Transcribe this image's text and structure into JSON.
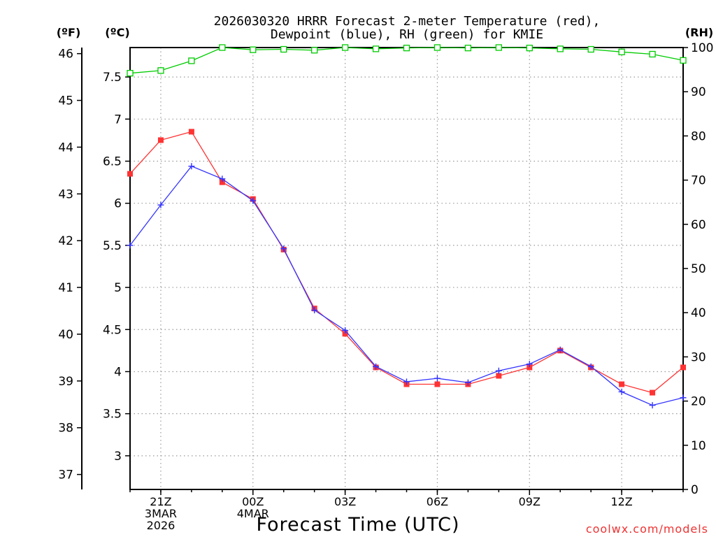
{
  "chart_data": {
    "type": "line",
    "title_line1": "2026030320 HRRR Forecast 2-meter Temperature (red),",
    "title_line2": "Dewpoint (blue), RH (green) for KMIE",
    "xlabel": "Forecast Time (UTC)",
    "watermark": "coolwx.com/models",
    "unit_f": "(ºF)",
    "unit_c": "(ºC)",
    "unit_rh": "(RH)",
    "x_hours": [
      20,
      21,
      22,
      23,
      0,
      1,
      2,
      3,
      4,
      5,
      6,
      7,
      8,
      9,
      10,
      11,
      12,
      13,
      14
    ],
    "x_range": [
      20,
      38
    ],
    "c_range": [
      2.6,
      7.85
    ],
    "rh_range": [
      0,
      100
    ],
    "f_range": [
      36.68,
      46.13
    ],
    "x_ticks": [
      {
        "x": 21,
        "lines": [
          "21Z",
          "3MAR",
          "2026"
        ]
      },
      {
        "x": 24,
        "lines": [
          "00Z",
          "4MAR"
        ]
      },
      {
        "x": 27,
        "lines": [
          "03Z"
        ]
      },
      {
        "x": 30,
        "lines": [
          "06Z"
        ]
      },
      {
        "x": 33,
        "lines": [
          "09Z"
        ]
      },
      {
        "x": 36,
        "lines": [
          "12Z"
        ]
      }
    ],
    "c_ticks": [
      {
        "v": 3,
        "label": "3"
      },
      {
        "v": 3.5,
        "label": "3.5"
      },
      {
        "v": 4,
        "label": "4"
      },
      {
        "v": 4.5,
        "label": "4.5"
      },
      {
        "v": 5,
        "label": "5"
      },
      {
        "v": 5.5,
        "label": "5.5"
      },
      {
        "v": 6,
        "label": "6"
      },
      {
        "v": 6.5,
        "label": "6.5"
      },
      {
        "v": 7,
        "label": "7"
      },
      {
        "v": 7.5,
        "label": "7.5"
      }
    ],
    "f_ticks": [
      {
        "v": 37,
        "label": "37"
      },
      {
        "v": 38,
        "label": "38"
      },
      {
        "v": 39,
        "label": "39"
      },
      {
        "v": 40,
        "label": "40"
      },
      {
        "v": 41,
        "label": "41"
      },
      {
        "v": 42,
        "label": "42"
      },
      {
        "v": 43,
        "label": "43"
      },
      {
        "v": 44,
        "label": "44"
      },
      {
        "v": 45,
        "label": "45"
      },
      {
        "v": 46,
        "label": "46"
      }
    ],
    "rh_ticks": [
      {
        "v": 0,
        "label": "0"
      },
      {
        "v": 10,
        "label": "10"
      },
      {
        "v": 20,
        "label": "20"
      },
      {
        "v": 30,
        "label": "30"
      },
      {
        "v": 40,
        "label": "40"
      },
      {
        "v": 50,
        "label": "50"
      },
      {
        "v": 60,
        "label": "60"
      },
      {
        "v": 70,
        "label": "70"
      },
      {
        "v": 80,
        "label": "80"
      },
      {
        "v": 90,
        "label": "90"
      },
      {
        "v": 100,
        "label": "100"
      }
    ],
    "series": [
      {
        "name": "Temperature",
        "color": "#ff3333",
        "marker": "filled-square",
        "axis": "c",
        "values": [
          6.35,
          6.75,
          6.85,
          6.25,
          6.05,
          5.45,
          4.75,
          4.45,
          4.05,
          3.85,
          3.85,
          3.85,
          3.95,
          4.05,
          4.25,
          4.05,
          3.85,
          3.75,
          4.05
        ]
      },
      {
        "name": "Dewpoint",
        "color": "#3333ff",
        "marker": "plus",
        "axis": "c",
        "values": [
          5.5,
          5.98,
          6.44,
          6.29,
          6.03,
          5.46,
          4.73,
          4.49,
          4.06,
          3.88,
          3.92,
          3.87,
          4.01,
          4.09,
          4.26,
          4.06,
          3.76,
          3.6,
          3.69
        ]
      },
      {
        "name": "RH",
        "color": "#00cc00",
        "marker": "open-square",
        "axis": "rh",
        "values": [
          94.2,
          94.8,
          97.0,
          100.0,
          99.5,
          99.6,
          99.4,
          100.0,
          99.7,
          99.9,
          100.0,
          99.9,
          100.0,
          99.9,
          99.7,
          99.6,
          99.0,
          98.5,
          97.1
        ]
      }
    ]
  }
}
